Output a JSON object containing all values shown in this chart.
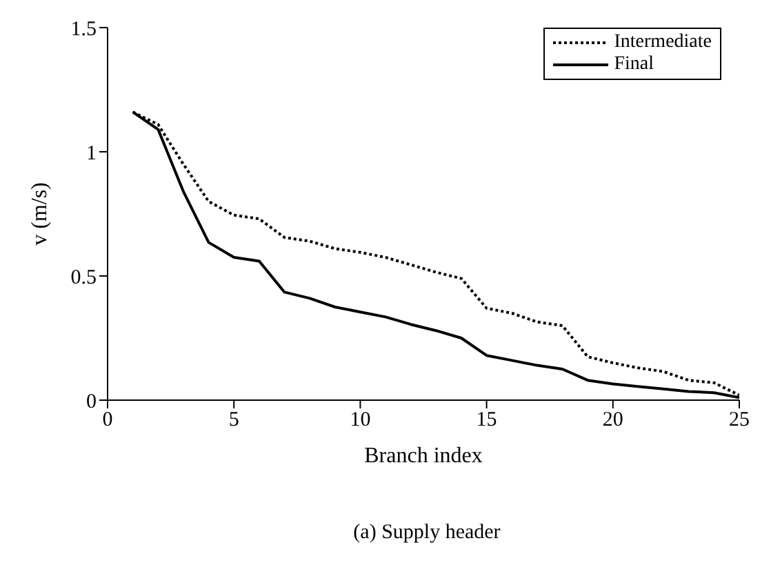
{
  "chart_data": {
    "type": "line",
    "xlabel": "Branch index",
    "ylabel": "v (m/s)",
    "annotations": [
      "(a) Supply header"
    ],
    "x": [
      1,
      2,
      3,
      4,
      5,
      6,
      7,
      8,
      9,
      10,
      11,
      12,
      13,
      14,
      15,
      16,
      17,
      18,
      19,
      20,
      21,
      22,
      23,
      24,
      25
    ],
    "xlim": [
      0,
      25
    ],
    "xticks": [
      0,
      5,
      10,
      15,
      20,
      25
    ],
    "ylim": [
      0,
      1.5
    ],
    "yticks": [
      0,
      0.5,
      {
        "value": 1,
        "label": "1"
      },
      1.5
    ],
    "legend": "top right",
    "marker": "none",
    "series": [
      {
        "name": "Intermediate",
        "color": "#000000",
        "line_style": "dotted",
        "values": [
          1.16,
          1.11,
          0.95,
          0.8,
          0.745,
          0.73,
          0.655,
          0.64,
          0.61,
          0.595,
          0.575,
          0.545,
          0.515,
          0.49,
          0.37,
          0.35,
          0.315,
          0.3,
          0.175,
          0.15,
          0.13,
          0.115,
          0.08,
          0.07,
          0.02
        ]
      },
      {
        "name": "Final",
        "color": "#000000",
        "line_style": "solid",
        "values": [
          1.16,
          1.09,
          0.84,
          0.635,
          0.575,
          0.56,
          0.435,
          0.41,
          0.375,
          0.355,
          0.335,
          0.305,
          0.28,
          0.25,
          0.18,
          0.16,
          0.14,
          0.125,
          0.08,
          0.065,
          0.055,
          0.045,
          0.035,
          0.03,
          0.01
        ]
      }
    ]
  }
}
